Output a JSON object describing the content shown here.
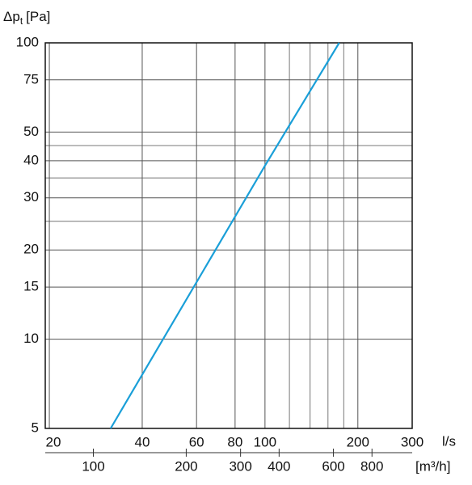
{
  "chart_data": {
    "type": "line",
    "y_label": {
      "main": "Δp",
      "sub": "t",
      "unit": "[Pa]"
    },
    "x_label": "l/s",
    "x2_label": "[m³/h]",
    "log_x": true,
    "log_y": true,
    "grid": true,
    "xlim": [
      19.4,
      300
    ],
    "xticks": [
      20,
      40,
      60,
      80,
      100,
      200,
      300
    ],
    "xgrid_extra": [
      120,
      140,
      160,
      180
    ],
    "x2lim": [
      69.84,
      1080
    ],
    "x2ticks": [
      100,
      200,
      300,
      400,
      600,
      800
    ],
    "ylim": [
      5,
      100
    ],
    "yticks": [
      5,
      10,
      15,
      20,
      30,
      40,
      50,
      75,
      100
    ],
    "ygrid_extra": [
      25,
      35,
      45
    ],
    "series": [
      {
        "color": "#1a9fd8",
        "x": [
          31.6,
          100,
          174
        ],
        "values": [
          5,
          38.5,
          100
        ]
      }
    ]
  }
}
